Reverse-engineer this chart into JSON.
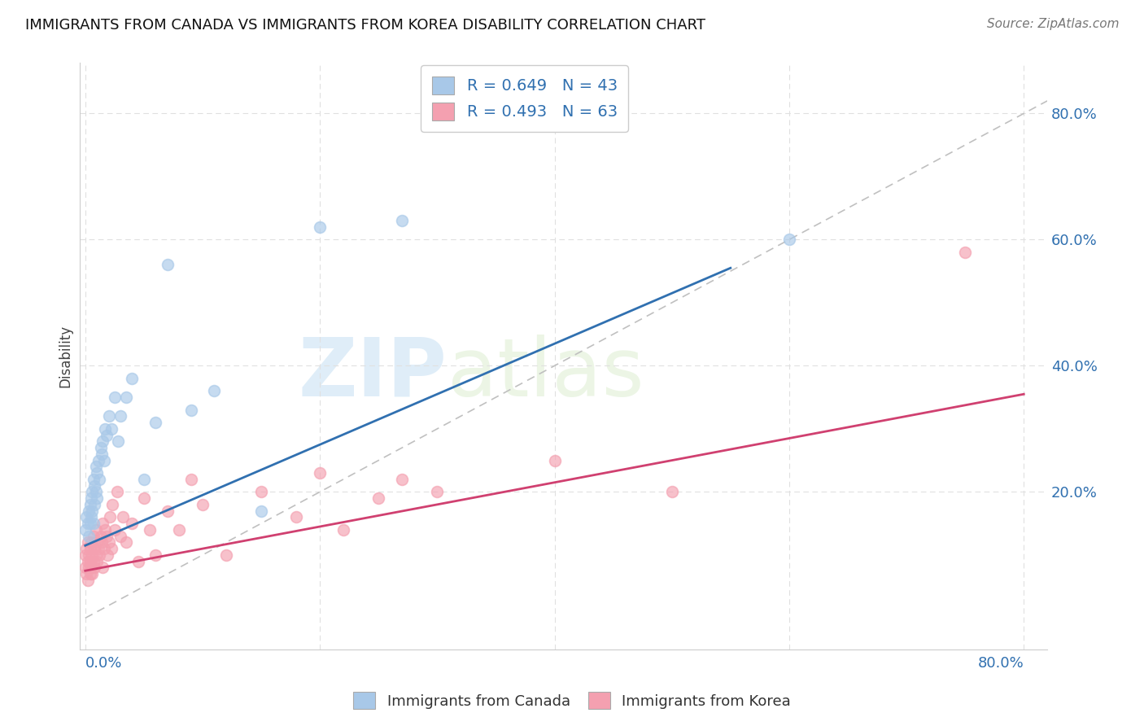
{
  "title": "IMMIGRANTS FROM CANADA VS IMMIGRANTS FROM KOREA DISABILITY CORRELATION CHART",
  "source": "Source: ZipAtlas.com",
  "ylabel": "Disability",
  "right_yticks": [
    "80.0%",
    "60.0%",
    "40.0%",
    "20.0%"
  ],
  "right_ytick_vals": [
    0.8,
    0.6,
    0.4,
    0.2
  ],
  "xlim": [
    -0.005,
    0.82
  ],
  "ylim": [
    -0.05,
    0.88
  ],
  "canada_R": 0.649,
  "canada_N": 43,
  "korea_R": 0.493,
  "korea_N": 63,
  "canada_color": "#a8c8e8",
  "korea_color": "#f4a0b0",
  "canada_line_color": "#3070b0",
  "korea_line_color": "#d04070",
  "diagonal_color": "#c0c0c0",
  "canada_line_x0": 0.0,
  "canada_line_y0": 0.115,
  "canada_line_x1": 0.55,
  "canada_line_y1": 0.555,
  "korea_line_x0": 0.0,
  "korea_line_y0": 0.075,
  "korea_line_x1": 0.8,
  "korea_line_y1": 0.355,
  "watermark_zip": "ZIP",
  "watermark_atlas": "atlas",
  "background_color": "#ffffff",
  "grid_color": "#e0e0e0",
  "canada_scatter_x": [
    0.0,
    0.001,
    0.002,
    0.003,
    0.003,
    0.004,
    0.004,
    0.005,
    0.005,
    0.006,
    0.006,
    0.007,
    0.007,
    0.008,
    0.008,
    0.009,
    0.009,
    0.01,
    0.01,
    0.011,
    0.012,
    0.013,
    0.014,
    0.015,
    0.016,
    0.017,
    0.018,
    0.02,
    0.022,
    0.025,
    0.028,
    0.03,
    0.035,
    0.04,
    0.05,
    0.06,
    0.07,
    0.09,
    0.11,
    0.15,
    0.2,
    0.27,
    0.6
  ],
  "canada_scatter_y": [
    0.14,
    0.16,
    0.15,
    0.17,
    0.13,
    0.15,
    0.18,
    0.16,
    0.19,
    0.17,
    0.2,
    0.15,
    0.22,
    0.18,
    0.21,
    0.2,
    0.24,
    0.19,
    0.23,
    0.25,
    0.22,
    0.27,
    0.26,
    0.28,
    0.25,
    0.3,
    0.29,
    0.32,
    0.3,
    0.35,
    0.28,
    0.32,
    0.35,
    0.38,
    0.22,
    0.31,
    0.56,
    0.33,
    0.36,
    0.17,
    0.62,
    0.63,
    0.6
  ],
  "korea_scatter_x": [
    0.0,
    0.0,
    0.001,
    0.001,
    0.002,
    0.002,
    0.002,
    0.003,
    0.003,
    0.004,
    0.004,
    0.004,
    0.005,
    0.005,
    0.006,
    0.006,
    0.007,
    0.007,
    0.008,
    0.008,
    0.009,
    0.009,
    0.01,
    0.01,
    0.011,
    0.012,
    0.013,
    0.014,
    0.015,
    0.015,
    0.016,
    0.017,
    0.018,
    0.019,
    0.02,
    0.021,
    0.022,
    0.023,
    0.025,
    0.027,
    0.03,
    0.032,
    0.035,
    0.04,
    0.045,
    0.05,
    0.055,
    0.06,
    0.07,
    0.08,
    0.09,
    0.1,
    0.12,
    0.15,
    0.18,
    0.2,
    0.22,
    0.25,
    0.27,
    0.3,
    0.4,
    0.5,
    0.75
  ],
  "korea_scatter_y": [
    0.1,
    0.08,
    0.07,
    0.11,
    0.09,
    0.06,
    0.12,
    0.08,
    0.1,
    0.07,
    0.11,
    0.09,
    0.08,
    0.12,
    0.1,
    0.07,
    0.09,
    0.13,
    0.08,
    0.11,
    0.1,
    0.14,
    0.09,
    0.12,
    0.11,
    0.1,
    0.13,
    0.12,
    0.08,
    0.15,
    0.11,
    0.14,
    0.13,
    0.1,
    0.12,
    0.16,
    0.11,
    0.18,
    0.14,
    0.2,
    0.13,
    0.16,
    0.12,
    0.15,
    0.09,
    0.19,
    0.14,
    0.1,
    0.17,
    0.14,
    0.22,
    0.18,
    0.1,
    0.2,
    0.16,
    0.23,
    0.14,
    0.19,
    0.22,
    0.2,
    0.25,
    0.2,
    0.58
  ]
}
